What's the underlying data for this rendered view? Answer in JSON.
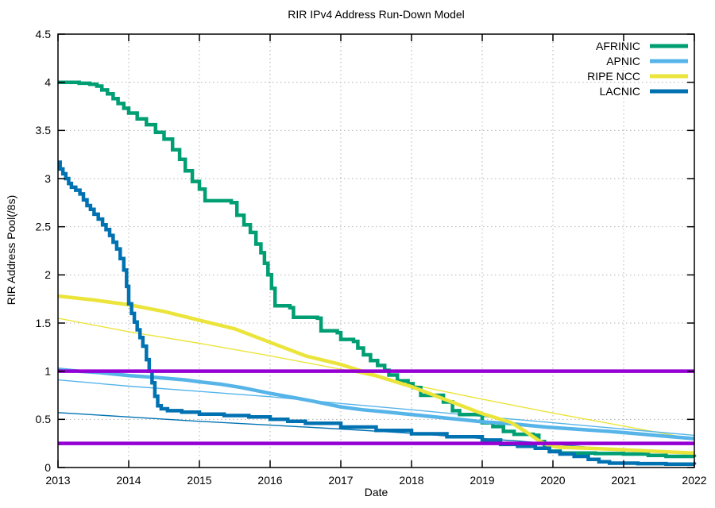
{
  "page": {
    "background": "#ffffff"
  },
  "chart_data": {
    "type": "line",
    "title": "RIR IPv4 Address Run-Down Model",
    "xlabel": "Date",
    "ylabel": "RIR Address Pool(/8s)",
    "xlim": [
      2013,
      2022
    ],
    "ylim": [
      0,
      4.5
    ],
    "xticks": [
      2013,
      2014,
      2015,
      2016,
      2017,
      2018,
      2019,
      2020,
      2021,
      2022
    ],
    "yticks": [
      0,
      0.5,
      1,
      1.5,
      2,
      2.5,
      3,
      3.5,
      4,
      4.5
    ],
    "grid": true,
    "legend": {
      "position": "top-right",
      "entries": [
        "AFRINIC",
        "APNIC",
        "RIPE NCC",
        "LACNIC"
      ]
    },
    "colors": {
      "AFRINIC": "#009e73",
      "APNIC": "#56b4e9",
      "RIPE NCC": "#ebe43b",
      "LACNIC": "#0072b2",
      "threshold": "#9400d3",
      "grid": "#b3b3b3",
      "axis": "#000000"
    },
    "series": [
      {
        "name": "AFRINIC",
        "color": "#009e73",
        "width": 4.5,
        "step": true,
        "legend": true,
        "points": [
          [
            2013.0,
            4.0
          ],
          [
            2013.3,
            3.99
          ],
          [
            2013.45,
            3.98
          ],
          [
            2013.55,
            3.96
          ],
          [
            2013.62,
            3.92
          ],
          [
            2013.7,
            3.88
          ],
          [
            2013.78,
            3.83
          ],
          [
            2013.85,
            3.78
          ],
          [
            2013.93,
            3.73
          ],
          [
            2014.0,
            3.68
          ],
          [
            2014.12,
            3.62
          ],
          [
            2014.25,
            3.56
          ],
          [
            2014.38,
            3.48
          ],
          [
            2014.5,
            3.41
          ],
          [
            2014.62,
            3.3
          ],
          [
            2014.72,
            3.2
          ],
          [
            2014.8,
            3.08
          ],
          [
            2014.9,
            2.97
          ],
          [
            2015.0,
            2.89
          ],
          [
            2015.08,
            2.77
          ],
          [
            2015.45,
            2.75
          ],
          [
            2015.53,
            2.62
          ],
          [
            2015.63,
            2.52
          ],
          [
            2015.72,
            2.44
          ],
          [
            2015.8,
            2.32
          ],
          [
            2015.87,
            2.23
          ],
          [
            2015.92,
            2.12
          ],
          [
            2015.97,
            2.0
          ],
          [
            2016.02,
            1.86
          ],
          [
            2016.07,
            1.68
          ],
          [
            2016.28,
            1.66
          ],
          [
            2016.33,
            1.56
          ],
          [
            2016.67,
            1.55
          ],
          [
            2016.72,
            1.42
          ],
          [
            2016.95,
            1.4
          ],
          [
            2017.0,
            1.33
          ],
          [
            2017.18,
            1.31
          ],
          [
            2017.24,
            1.24
          ],
          [
            2017.32,
            1.17
          ],
          [
            2017.42,
            1.11
          ],
          [
            2017.52,
            1.06
          ],
          [
            2017.62,
            1.01
          ],
          [
            2017.68,
            0.96
          ],
          [
            2017.8,
            0.9
          ],
          [
            2017.95,
            0.87
          ],
          [
            2018.02,
            0.83
          ],
          [
            2018.13,
            0.75
          ],
          [
            2018.45,
            0.68
          ],
          [
            2018.58,
            0.59
          ],
          [
            2018.68,
            0.55
          ],
          [
            2019.0,
            0.465
          ],
          [
            2019.15,
            0.425
          ],
          [
            2019.3,
            0.375
          ],
          [
            2019.45,
            0.345
          ],
          [
            2019.72,
            0.335
          ],
          [
            2019.8,
            0.27
          ],
          [
            2019.88,
            0.21
          ],
          [
            2019.95,
            0.17
          ],
          [
            2020.1,
            0.15
          ],
          [
            2020.6,
            0.145
          ],
          [
            2021.0,
            0.14
          ],
          [
            2021.35,
            0.125
          ],
          [
            2021.6,
            0.115
          ],
          [
            2022.0,
            0.11
          ]
        ]
      },
      {
        "name": "APNIC",
        "color": "#56b4e9",
        "width": 4.5,
        "step": false,
        "legend": true,
        "points": [
          [
            2013.0,
            1.02
          ],
          [
            2013.3,
            1.0
          ],
          [
            2013.6,
            0.985
          ],
          [
            2014.0,
            0.955
          ],
          [
            2014.4,
            0.935
          ],
          [
            2014.8,
            0.91
          ],
          [
            2015.0,
            0.89
          ],
          [
            2015.3,
            0.865
          ],
          [
            2015.6,
            0.83
          ],
          [
            2016.0,
            0.77
          ],
          [
            2016.3,
            0.73
          ],
          [
            2016.6,
            0.69
          ],
          [
            2017.0,
            0.63
          ],
          [
            2017.3,
            0.6
          ],
          [
            2017.6,
            0.58
          ],
          [
            2018.0,
            0.55
          ],
          [
            2018.4,
            0.52
          ],
          [
            2018.8,
            0.49
          ],
          [
            2019.0,
            0.475
          ],
          [
            2019.4,
            0.455
          ],
          [
            2019.9,
            0.42
          ],
          [
            2020.3,
            0.4
          ],
          [
            2020.8,
            0.375
          ],
          [
            2021.2,
            0.35
          ],
          [
            2021.6,
            0.325
          ],
          [
            2022.0,
            0.3
          ]
        ]
      },
      {
        "name": "RIPE NCC",
        "color": "#ebe43b",
        "width": 4.5,
        "step": false,
        "legend": true,
        "points": [
          [
            2013.0,
            1.78
          ],
          [
            2013.5,
            1.74
          ],
          [
            2014.0,
            1.69
          ],
          [
            2014.5,
            1.62
          ],
          [
            2015.0,
            1.53
          ],
          [
            2015.5,
            1.44
          ],
          [
            2016.0,
            1.3
          ],
          [
            2016.5,
            1.16
          ],
          [
            2017.0,
            1.07
          ],
          [
            2017.3,
            1.0
          ],
          [
            2017.6,
            0.93
          ],
          [
            2018.0,
            0.84
          ],
          [
            2018.5,
            0.7
          ],
          [
            2019.0,
            0.56
          ],
          [
            2019.4,
            0.47
          ],
          [
            2019.6,
            0.38
          ],
          [
            2019.8,
            0.28
          ],
          [
            2019.95,
            0.225
          ],
          [
            2020.1,
            0.21
          ],
          [
            2020.5,
            0.2
          ],
          [
            2021.0,
            0.185
          ],
          [
            2021.4,
            0.17
          ],
          [
            2021.7,
            0.16
          ],
          [
            2022.0,
            0.15
          ]
        ]
      },
      {
        "name": "LACNIC",
        "color": "#0072b2",
        "width": 4.5,
        "step": true,
        "legend": true,
        "points": [
          [
            2013.0,
            3.17
          ],
          [
            2013.03,
            3.1
          ],
          [
            2013.07,
            3.05
          ],
          [
            2013.11,
            3.0
          ],
          [
            2013.15,
            2.95
          ],
          [
            2013.19,
            2.91
          ],
          [
            2013.25,
            2.88
          ],
          [
            2013.31,
            2.84
          ],
          [
            2013.36,
            2.78
          ],
          [
            2013.41,
            2.72
          ],
          [
            2013.46,
            2.68
          ],
          [
            2013.51,
            2.63
          ],
          [
            2013.57,
            2.58
          ],
          [
            2013.63,
            2.52
          ],
          [
            2013.68,
            2.47
          ],
          [
            2013.73,
            2.41
          ],
          [
            2013.78,
            2.34
          ],
          [
            2013.83,
            2.27
          ],
          [
            2013.88,
            2.17
          ],
          [
            2013.93,
            2.05
          ],
          [
            2013.97,
            1.88
          ],
          [
            2014.0,
            1.7
          ],
          [
            2014.04,
            1.6
          ],
          [
            2014.08,
            1.51
          ],
          [
            2014.12,
            1.43
          ],
          [
            2014.16,
            1.35
          ],
          [
            2014.2,
            1.26
          ],
          [
            2014.25,
            1.12
          ],
          [
            2014.29,
            1.0
          ],
          [
            2014.33,
            0.88
          ],
          [
            2014.37,
            0.74
          ],
          [
            2014.41,
            0.64
          ],
          [
            2014.46,
            0.61
          ],
          [
            2014.55,
            0.59
          ],
          [
            2014.75,
            0.575
          ],
          [
            2015.0,
            0.555
          ],
          [
            2015.35,
            0.54
          ],
          [
            2015.7,
            0.525
          ],
          [
            2016.0,
            0.5
          ],
          [
            2016.25,
            0.48
          ],
          [
            2016.5,
            0.46
          ],
          [
            2017.0,
            0.42
          ],
          [
            2017.5,
            0.385
          ],
          [
            2018.0,
            0.35
          ],
          [
            2018.5,
            0.32
          ],
          [
            2019.0,
            0.285
          ],
          [
            2019.26,
            0.24
          ],
          [
            2019.5,
            0.22
          ],
          [
            2019.75,
            0.2
          ],
          [
            2019.95,
            0.165
          ],
          [
            2020.1,
            0.14
          ],
          [
            2020.3,
            0.115
          ],
          [
            2020.5,
            0.085
          ],
          [
            2020.65,
            0.06
          ],
          [
            2020.8,
            0.045
          ],
          [
            2021.2,
            0.04
          ],
          [
            2021.6,
            0.035
          ],
          [
            2022.0,
            0.03
          ]
        ]
      }
    ],
    "projections": [
      {
        "name": "RIPE NCC model",
        "color": "#ebe43b",
        "width": 1.4,
        "step": false,
        "legend": false,
        "points": [
          [
            2013,
            1.55
          ],
          [
            2014,
            1.41
          ],
          [
            2015,
            1.29
          ],
          [
            2016,
            1.16
          ],
          [
            2017,
            1.02
          ],
          [
            2018,
            0.86
          ],
          [
            2019,
            0.71
          ],
          [
            2020,
            0.565
          ],
          [
            2021,
            0.43
          ],
          [
            2022,
            0.295
          ]
        ]
      },
      {
        "name": "APNIC model",
        "color": "#56b4e9",
        "width": 1.4,
        "step": false,
        "legend": false,
        "points": [
          [
            2013,
            0.91
          ],
          [
            2014,
            0.845
          ],
          [
            2015,
            0.79
          ],
          [
            2016,
            0.735
          ],
          [
            2017,
            0.665
          ],
          [
            2018,
            0.6
          ],
          [
            2019,
            0.53
          ],
          [
            2020,
            0.465
          ],
          [
            2021,
            0.4
          ],
          [
            2022,
            0.335
          ]
        ]
      },
      {
        "name": "LACNIC model",
        "color": "#0072b2",
        "width": 1.4,
        "step": false,
        "legend": false,
        "points": [
          [
            2013,
            0.57
          ],
          [
            2014,
            0.525
          ],
          [
            2015,
            0.48
          ],
          [
            2016,
            0.44
          ],
          [
            2017,
            0.4
          ],
          [
            2018,
            0.355
          ],
          [
            2019,
            0.3
          ],
          [
            2019.5,
            0.275
          ],
          [
            2020,
            0.245
          ],
          [
            2020.5,
            0.21
          ],
          [
            2021,
            0.19
          ],
          [
            2021.5,
            0.172
          ],
          [
            2022,
            0.155
          ]
        ]
      }
    ],
    "thresholds": [
      {
        "y": 1.0,
        "color": "#9400d3",
        "width": 4.5
      },
      {
        "y": 0.25,
        "color": "#9400d3",
        "width": 4.5
      }
    ]
  }
}
